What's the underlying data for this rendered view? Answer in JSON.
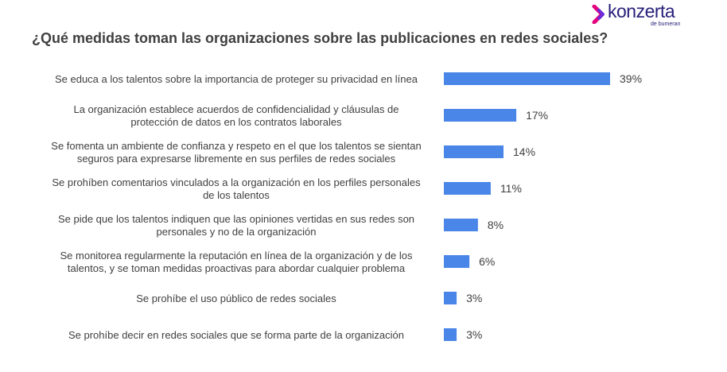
{
  "logo": {
    "name": "konzerta",
    "tagline": "de bumeran",
    "brand_color": "#27207a",
    "accent_colors": [
      "#e5007e",
      "#6b2bd9"
    ]
  },
  "title": "¿Qué medidas toman las organizaciones sobre las publicaciones en redes sociales?",
  "chart_data": {
    "type": "bar",
    "orientation": "horizontal",
    "bar_color": "#4a86e8",
    "categories": [
      [
        "Se educa a los talentos sobre la importancia de proteger su privacidad en línea"
      ],
      [
        "La organización establece acuerdos de confidencialidad y cláusulas de",
        "protección de datos en los contratos laborales"
      ],
      [
        "Se fomenta un ambiente de confianza y respeto en el que los talentos se sientan",
        "seguros para expresarse libremente en sus perfiles de redes sociales"
      ],
      [
        "Se prohíben comentarios vinculados a la organización en los perfiles personales",
        "de los talentos"
      ],
      [
        "Se pide que los talentos indiquen que las opiniones vertidas en sus redes son",
        "personales y no de la organización"
      ],
      [
        "Se monitorea regularmente la reputación en línea de la organización y de los",
        "talentos, y se toman medidas proactivas para abordar cualquier problema"
      ],
      [
        "Se prohíbe el uso público de redes sociales"
      ],
      [
        "Se prohíbe decir en redes sociales que se forma parte de la organización"
      ]
    ],
    "values": [
      39,
      17,
      14,
      11,
      8,
      6,
      3,
      3
    ],
    "data_labels": [
      "39%",
      "17%",
      "14%",
      "11%",
      "8%",
      "6%",
      "3%",
      "3%"
    ],
    "unit": "%",
    "xlim": [
      0,
      39
    ],
    "grid": false,
    "legend": "none"
  }
}
